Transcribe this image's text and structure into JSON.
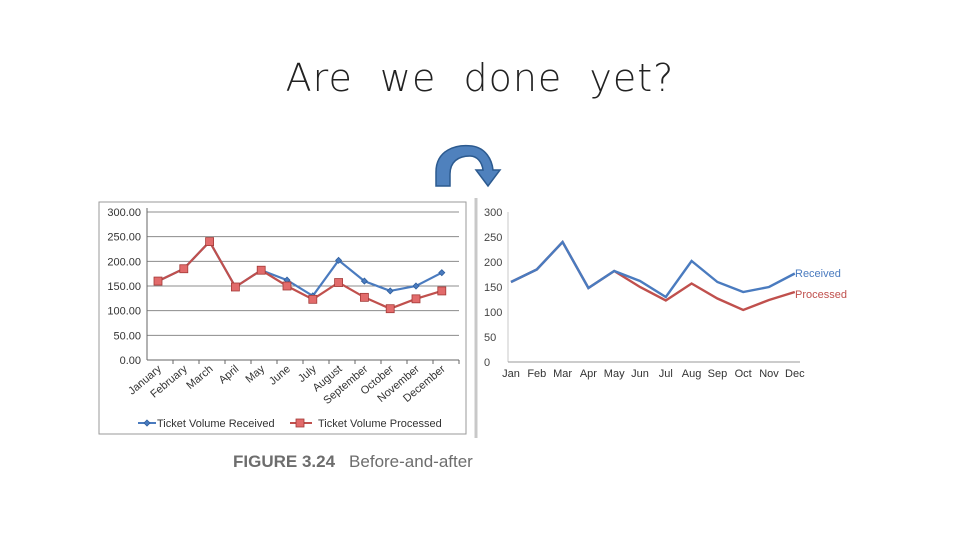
{
  "slide": {
    "title": "Are we done yet?"
  },
  "caption": {
    "number": "FIGURE 3.24",
    "text": "Before-and-after"
  },
  "icons": {
    "arrow": "curved-arrow-icon"
  },
  "colors": {
    "received": "#4a7bbf",
    "processed": "#c0504d",
    "arrow_fill": "#4f81bd",
    "arrow_stroke": "#2c5a8f"
  },
  "chart_data": [
    {
      "type": "line",
      "categories": [
        "January",
        "February",
        "March",
        "April",
        "May",
        "June",
        "July",
        "August",
        "September",
        "October",
        "November",
        "December"
      ],
      "series": [
        {
          "name": "Ticket Volume Received",
          "values": [
            160,
            185,
            240,
            148,
            182,
            162,
            130,
            202,
            160,
            140,
            150,
            177
          ]
        },
        {
          "name": "Ticket Volume Processed",
          "values": [
            160,
            185,
            240,
            148,
            182,
            150,
            123,
            157,
            127,
            104,
            124,
            140
          ]
        }
      ],
      "yticks": [
        "0.00",
        "50.00",
        "100.00",
        "150.00",
        "200.00",
        "250.00",
        "300.00"
      ],
      "ylim": [
        0,
        300
      ],
      "grid": true,
      "markers": true,
      "legend": "bottom"
    },
    {
      "type": "line",
      "categories": [
        "Jan",
        "Feb",
        "Mar",
        "Apr",
        "May",
        "Jun",
        "Jul",
        "Aug",
        "Sep",
        "Oct",
        "Nov",
        "Dec"
      ],
      "series": [
        {
          "name": "Received",
          "values": [
            160,
            185,
            240,
            148,
            182,
            162,
            130,
            202,
            160,
            140,
            150,
            177
          ]
        },
        {
          "name": "Processed",
          "values": [
            160,
            185,
            240,
            148,
            182,
            150,
            123,
            157,
            127,
            104,
            124,
            140
          ]
        }
      ],
      "yticks": [
        "0",
        "50",
        "100",
        "150",
        "200",
        "250",
        "300"
      ],
      "ylim": [
        0,
        300
      ],
      "grid": false,
      "markers": false,
      "legend": "direct-labels-right"
    }
  ]
}
